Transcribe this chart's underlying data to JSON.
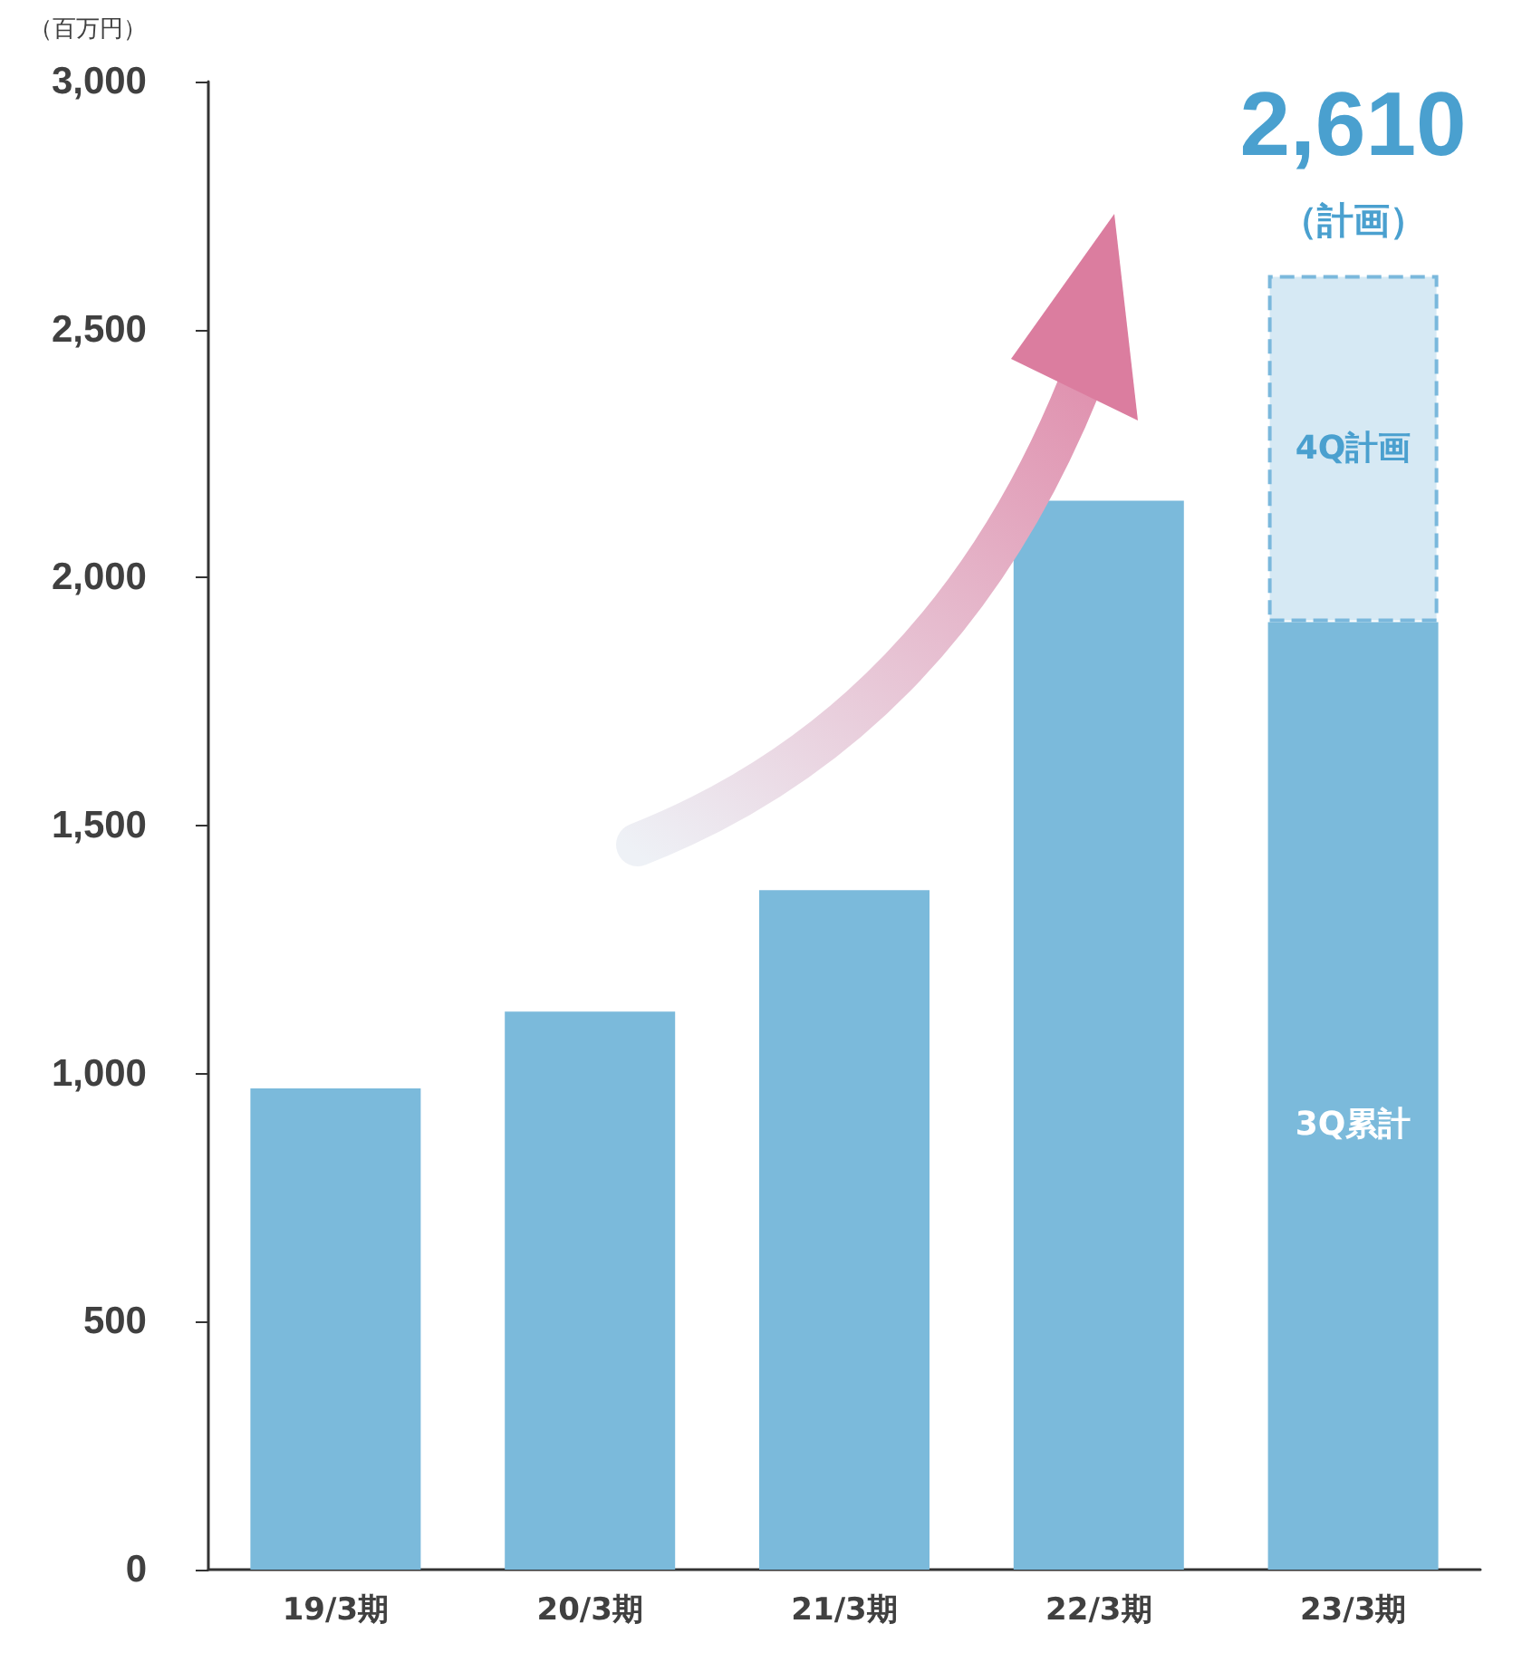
{
  "chart_data": {
    "type": "bar",
    "ylabel": "（百万円）",
    "categories": [
      "19/3期",
      "20/3期",
      "21/3期",
      "22/3期",
      "23/3期"
    ],
    "stacked": true,
    "series": [
      {
        "color": "#7bbadb",
        "values": [
          970,
          1125,
          1370,
          2155,
          1910
        ]
      },
      {
        "color": "#d6e9f4",
        "line_style": "dashed",
        "values": [
          null,
          null,
          null,
          null,
          700
        ]
      }
    ],
    "totals": [
      null,
      null,
      null,
      null,
      "2,610"
    ],
    "annotations": [
      "（計画）",
      "4Q計画",
      "3Q累計"
    ],
    "ylim": [
      0,
      3000
    ],
    "yticks": [
      0,
      500,
      {
        "value": 1000,
        "label": "1,000"
      },
      {
        "value": 1500,
        "label": "1,500"
      },
      {
        "value": 2000,
        "label": "2,000"
      },
      {
        "value": 2500,
        "label": "2,500"
      },
      {
        "value": 3000,
        "label": "3,000"
      }
    ],
    "grid": false
  }
}
